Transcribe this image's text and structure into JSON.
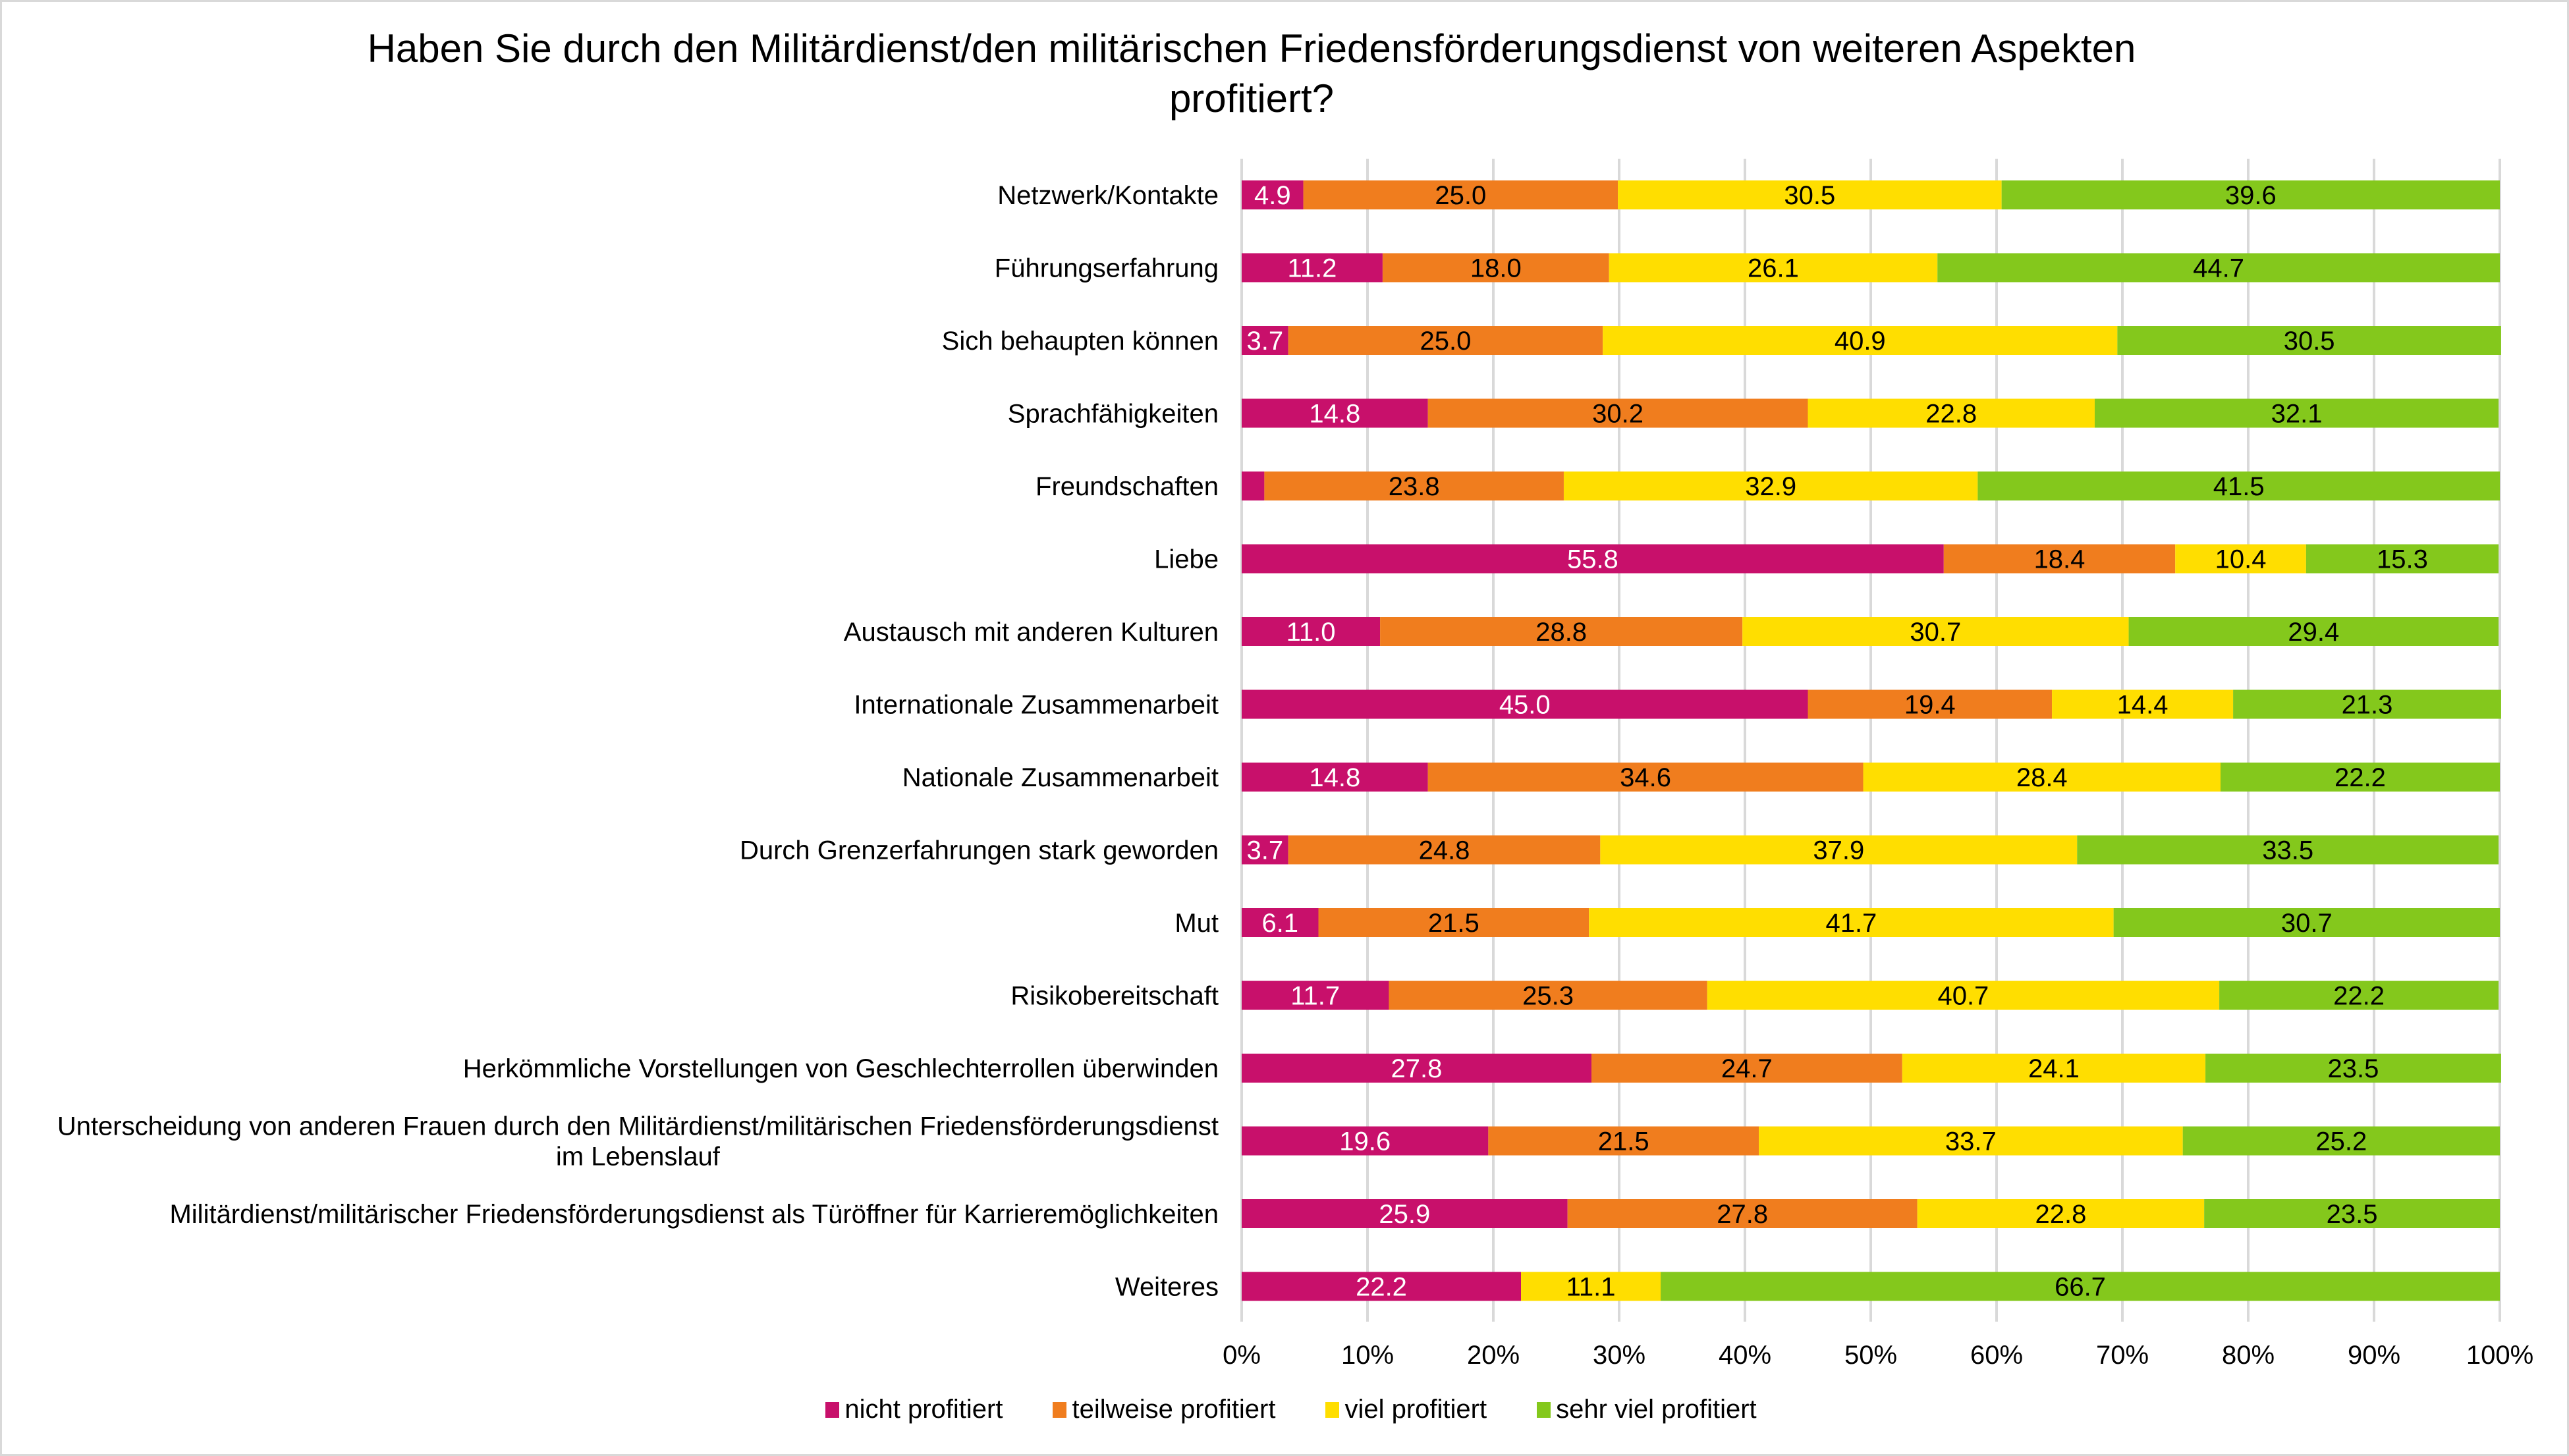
{
  "chart_data": {
    "type": "bar",
    "orientation": "horizontal",
    "stacked": "percent",
    "title": "Haben Sie durch den Militärdienst/den militärischen Friedensförderungsdienst von weiteren Aspekten profitiert?",
    "title_lines": [
      "Haben Sie durch den Militärdienst/den militärischen Friedensförderungsdienst von weiteren Aspekten",
      "profitiert?"
    ],
    "xlabel": "",
    "ylabel": "",
    "xlim": [
      0,
      100
    ],
    "x_ticks": [
      "0%",
      "10%",
      "20%",
      "30%",
      "40%",
      "50%",
      "60%",
      "70%",
      "80%",
      "90%",
      "100%"
    ],
    "grid": "vertical",
    "legend_position": "bottom",
    "categories": [
      [
        "Netzwerk/Kontakte"
      ],
      [
        "Führungserfahrung"
      ],
      [
        "Sich behaupten können"
      ],
      [
        "Sprachfähigkeiten"
      ],
      [
        "Freundschaften"
      ],
      [
        "Liebe"
      ],
      [
        "Austausch mit anderen Kulturen"
      ],
      [
        "Internationale Zusammenarbeit"
      ],
      [
        "Nationale Zusammenarbeit"
      ],
      [
        "Durch Grenzerfahrungen stark geworden"
      ],
      [
        "Mut"
      ],
      [
        "Risikobereitschaft"
      ],
      [
        "Herkömmliche Vorstellungen von Geschlechterrollen überwinden"
      ],
      [
        "Unterscheidung von anderen Frauen durch den Militärdienst/militärischen Friedensförderungsdienst",
        "im Lebenslauf"
      ],
      [
        "Militärdienst/militärischer Friedensförderungsdienst als Türöffner für Karrieremöglichkeiten"
      ],
      [
        "Weiteres"
      ]
    ],
    "series": [
      {
        "name": "nicht profitiert",
        "color": "#C8106B",
        "label_color": "#ffffff",
        "values": [
          4.9,
          11.2,
          3.7,
          14.8,
          1.8,
          55.8,
          11.0,
          45.0,
          14.8,
          3.7,
          6.1,
          11.7,
          27.8,
          19.6,
          25.9,
          22.2
        ],
        "labels": [
          "4.9",
          "11.2",
          "3.7",
          "14.8",
          "",
          "55.8",
          "11.0",
          "45.0",
          "14.8",
          "3.7",
          "6.1",
          "11.7",
          "27.8",
          "19.6",
          "25.9",
          "22.2"
        ]
      },
      {
        "name": "teilweise profitiert",
        "color": "#F07D1E",
        "label_color": "#000000",
        "values": [
          25.0,
          18.0,
          25.0,
          30.2,
          23.8,
          18.4,
          28.8,
          19.4,
          34.6,
          24.8,
          21.5,
          25.3,
          24.7,
          21.5,
          27.8,
          0
        ],
        "labels": [
          "25.0",
          "18.0",
          "25.0",
          "30.2",
          "23.8",
          "18.4",
          "28.8",
          "19.4",
          "34.6",
          "24.8",
          "21.5",
          "25.3",
          "24.7",
          "21.5",
          "27.8",
          ""
        ]
      },
      {
        "name": "viel profitiert",
        "color": "#FFDE00",
        "label_color": "#000000",
        "values": [
          30.5,
          26.1,
          40.9,
          22.8,
          32.9,
          10.4,
          30.7,
          14.4,
          28.4,
          37.9,
          41.7,
          40.7,
          24.1,
          33.7,
          22.8,
          11.1
        ],
        "labels": [
          "30.5",
          "26.1",
          "40.9",
          "22.8",
          "32.9",
          "10.4",
          "30.7",
          "14.4",
          "28.4",
          "37.9",
          "41.7",
          "40.7",
          "24.1",
          "33.7",
          "22.8",
          "11.1"
        ]
      },
      {
        "name": "sehr viel profitiert",
        "color": "#84C81C",
        "label_color": "#000000",
        "values": [
          39.6,
          44.7,
          30.5,
          32.1,
          41.5,
          15.3,
          29.4,
          21.3,
          22.2,
          33.5,
          30.7,
          22.2,
          23.5,
          25.2,
          23.5,
          66.7
        ],
        "labels": [
          "39.6",
          "44.7",
          "30.5",
          "32.1",
          "41.5",
          "15.3",
          "29.4",
          "21.3",
          "22.2",
          "33.5",
          "30.7",
          "22.2",
          "23.5",
          "25.2",
          "23.5",
          "66.7"
        ]
      }
    ]
  },
  "legend": {
    "items": [
      {
        "label": "nicht profitiert",
        "color": "#C8106B"
      },
      {
        "label": "teilweise profitiert",
        "color": "#F07D1E"
      },
      {
        "label": "viel profitiert",
        "color": "#FFDE00"
      },
      {
        "label": "sehr viel profitiert",
        "color": "#84C81C"
      }
    ]
  },
  "style": {
    "gridline_color": "#d9d9d9",
    "frame_color": "#d9d9d9"
  }
}
